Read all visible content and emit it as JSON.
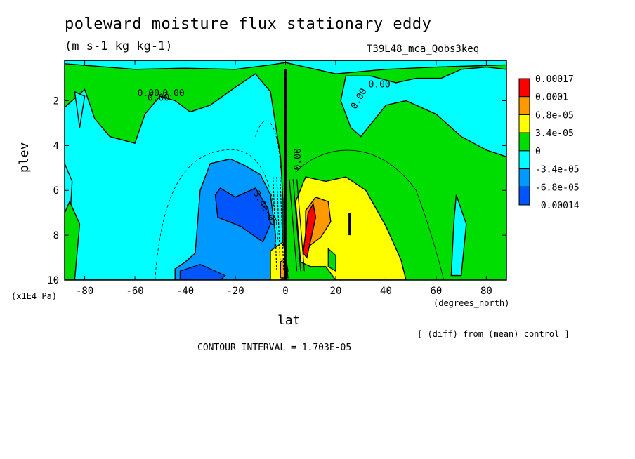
{
  "title": "poleward moisture flux stationary eddy",
  "units": "(m s-1 kg kg-1)",
  "run_label": "T39L48_mca_Qobs3keq",
  "x_axis_units": "(degrees_north)",
  "y_axis_units": "(x1E4 Pa)",
  "diff_note": "[ (diff) from (mean) control ]",
  "contour_interval": "CONTOUR INTERVAL = 1.703E-05",
  "chart_data": {
    "type": "heatmap",
    "xlabel": "lat",
    "ylabel": "plev",
    "xlim": [
      -88,
      88
    ],
    "ylim": [
      10,
      0.2
    ],
    "x_ticks": [
      -80,
      -60,
      -40,
      -20,
      0,
      20,
      40,
      60,
      80
    ],
    "y_ticks": [
      2,
      4,
      6,
      8,
      10
    ],
    "colorbar": {
      "labels": [
        "0.00017",
        "0.0001",
        "6.8e-05",
        "3.4e-05",
        "0",
        "-3.4e-05",
        "-6.8e-05",
        "-0.00014"
      ],
      "colors": [
        "#ff0000",
        "#ff9900",
        "#ffff00",
        "#00dd00",
        "#00ffff",
        "#0099ff",
        "#0055ff"
      ]
    },
    "contour_labels": [
      "0.00",
      "0.00",
      "0.00",
      "0.00",
      "0.00",
      "0.00",
      "-3.4e-05",
      "0.00"
    ],
    "regions": [
      {
        "level": "positive 0 to 3.4e-05",
        "lat": [
          0,
          88
        ],
        "plev": [
          0.2,
          10
        ],
        "color": "#00dd00"
      },
      {
        "level": "negative -3.4e-05 to 0",
        "lat": [
          -88,
          0
        ],
        "plev": [
          2.5,
          10
        ],
        "color": "#00ffff"
      },
      {
        "level": "negative -6.8e-05 to -3.4e-05",
        "lat": [
          -40,
          -4
        ],
        "plev": [
          5,
          10
        ],
        "color": "#0099ff"
      },
      {
        "level": "negative -0.00014 to -6.8e-05",
        "lat": [
          -28,
          -8
        ],
        "plev": [
          6,
          8
        ],
        "color": "#0055ff"
      },
      {
        "level": "positive 3.4e-05 to 6.8e-05",
        "lat": [
          6,
          48
        ],
        "plev": [
          5.5,
          10
        ],
        "color": "#ffff00"
      },
      {
        "level": "positive 6.8e-05 to 0.0001",
        "lat": [
          6,
          18
        ],
        "plev": [
          6.5,
          8.5
        ],
        "color": "#ff9900"
      },
      {
        "level": "positive above 0.00017",
        "lat": [
          6,
          12
        ],
        "plev": [
          7,
          9
        ],
        "color": "#ff0000"
      }
    ]
  }
}
